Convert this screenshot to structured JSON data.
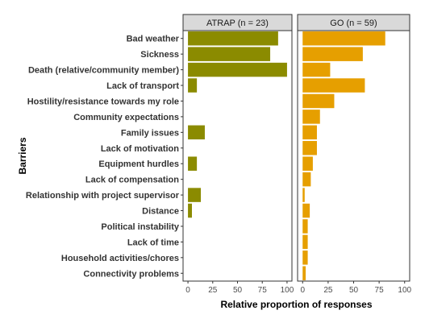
{
  "chart_data": {
    "type": "bar",
    "orientation": "horizontal",
    "ylabel": "Barriers",
    "xlabel": "Relative proportion of responses",
    "xlim": [
      0,
      100
    ],
    "xticks": [
      0,
      25,
      50,
      75,
      100
    ],
    "categories": [
      "Bad weather",
      "Sickness",
      "Death (relative/community member)",
      "Lack of transport",
      "Hostility/resistance towards my role",
      "Community expectations",
      "Family issues",
      "Lack of motivation",
      "Equipment hurdles",
      "Lack of compensation",
      "Relationship with project supervisor",
      "Distance",
      "Political instability",
      "Lack of time",
      "Household activities/chores",
      "Connectivity problems"
    ],
    "panels": [
      {
        "name": "ATRAP (n = 23)",
        "color": "#8b8b00",
        "values": [
          91,
          83,
          100,
          9,
          0,
          0,
          17,
          0,
          9,
          0,
          13,
          4,
          0,
          0,
          0,
          0
        ]
      },
      {
        "name": "GO (n = 59)",
        "color": "#e69f00",
        "values": [
          81,
          59,
          27,
          61,
          31,
          17,
          14,
          14,
          10,
          8,
          2,
          7,
          5,
          5,
          5,
          3
        ]
      }
    ],
    "grid": false,
    "legend": "none"
  }
}
